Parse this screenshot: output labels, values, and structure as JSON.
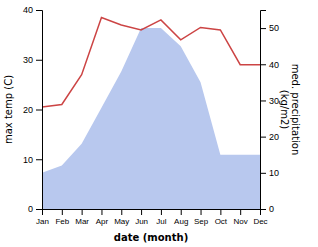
{
  "chart_data": {
    "type": "line",
    "categories": [
      "Jan",
      "Feb",
      "Mar",
      "Apr",
      "May",
      "Jun",
      "Jul",
      "Aug",
      "Sep",
      "Oct",
      "Nov",
      "Dec"
    ],
    "xlabel": "date (month)",
    "ylabel": "max temp (C)",
    "y2label": "med. precipitation\n(kg/m2)",
    "ylim": [
      0,
      40
    ],
    "yticks": [
      0,
      10,
      20,
      30,
      40
    ],
    "y2lim": [
      0,
      55
    ],
    "y2ticks": [
      0,
      10,
      20,
      30,
      40,
      50
    ],
    "grid": false,
    "series": [
      {
        "type": "area",
        "axis": "y2",
        "color": "#b8c8ee",
        "values": [
          10,
          12,
          18,
          28,
          38,
          50,
          50,
          45,
          35,
          15,
          15,
          15
        ]
      },
      {
        "type": "line",
        "color": "#cc4444",
        "values": [
          20.5,
          21,
          27,
          38.5,
          37,
          36,
          38,
          34,
          36.5,
          36,
          29,
          29
        ]
      }
    ]
  }
}
